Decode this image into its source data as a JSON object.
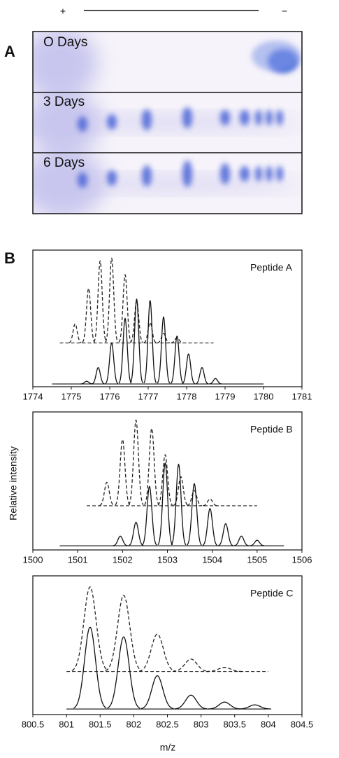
{
  "figure": {
    "polarity_plus": "+",
    "polarity_minus": "−",
    "panel_a": "A",
    "panel_b": "B",
    "gel_lanes": [
      "O Days",
      "3 Days",
      "6 Days"
    ],
    "y_label": "Relative intensity",
    "x_label": "m/z"
  },
  "chart_data": [
    {
      "type": "line",
      "title": "Peptide A",
      "xlim": [
        1774,
        1781
      ],
      "xticks": [
        1774,
        1775,
        1776,
        1777,
        1778,
        1779,
        1780,
        1781
      ],
      "ylim": [
        0,
        1
      ],
      "series": [
        {
          "line_style": "dashed",
          "color": "#222",
          "baseline": 0.32,
          "range": [
            1774.7,
            1778.7
          ],
          "x": [
            1775.1,
            1775.45,
            1775.75,
            1776.05,
            1776.4,
            1776.7,
            1777.05,
            1777.4,
            1777.75
          ],
          "values": [
            0.46,
            0.72,
            0.92,
            0.94,
            0.82,
            0.63,
            0.47,
            0.39,
            0.36
          ]
        },
        {
          "line_style": "solid",
          "color": "#111",
          "baseline": 0.02,
          "range": [
            1774.5,
            1780
          ],
          "x": [
            1775.4,
            1775.7,
            1776.05,
            1776.4,
            1776.7,
            1777.05,
            1777.4,
            1777.75,
            1778.05,
            1778.4,
            1778.75
          ],
          "values": [
            0.04,
            0.14,
            0.32,
            0.5,
            0.64,
            0.63,
            0.51,
            0.37,
            0.24,
            0.14,
            0.06
          ]
        }
      ]
    },
    {
      "type": "line",
      "title": "Peptide B",
      "xlim": [
        1500,
        1506
      ],
      "xticks": [
        1500,
        1501,
        1502,
        1503,
        1504,
        1505,
        1506
      ],
      "ylim": [
        0,
        1
      ],
      "series": [
        {
          "line_style": "dashed",
          "color": "#222",
          "baseline": 0.32,
          "range": [
            1501.2,
            1505
          ],
          "x": [
            1501.65,
            1502,
            1502.3,
            1502.65,
            1502.95,
            1503.3,
            1503.6,
            1503.95
          ],
          "values": [
            0.49,
            0.8,
            0.94,
            0.88,
            0.69,
            0.53,
            0.43,
            0.37
          ]
        },
        {
          "line_style": "solid",
          "color": "#111",
          "baseline": 0.03,
          "range": [
            1500.6,
            1505.6
          ],
          "x": [
            1501.95,
            1502.3,
            1502.6,
            1502.95,
            1503.25,
            1503.6,
            1503.95,
            1504.3,
            1504.65,
            1505
          ],
          "values": [
            0.1,
            0.2,
            0.46,
            0.63,
            0.62,
            0.48,
            0.3,
            0.19,
            0.1,
            0.07
          ]
        }
      ]
    },
    {
      "type": "line",
      "title": "Peptide C",
      "xlim": [
        800.5,
        804.5
      ],
      "xticks": [
        800.5,
        801,
        801.5,
        802,
        802.5,
        803,
        803.5,
        804,
        804.5
      ],
      "ylim": [
        0,
        1
      ],
      "series": [
        {
          "line_style": "dashed",
          "color": "#222",
          "baseline": 0.31,
          "range": [
            801,
            804
          ],
          "x": [
            801.35,
            801.85,
            802.35,
            802.85,
            803.35
          ],
          "values": [
            0.92,
            0.86,
            0.58,
            0.4,
            0.34
          ]
        },
        {
          "line_style": "solid",
          "color": "#111",
          "baseline": 0.04,
          "range": [
            801,
            804
          ],
          "x": [
            801.35,
            801.85,
            802.35,
            802.85,
            803.35,
            803.8
          ],
          "values": [
            0.63,
            0.56,
            0.28,
            0.14,
            0.09,
            0.07
          ]
        }
      ]
    }
  ]
}
